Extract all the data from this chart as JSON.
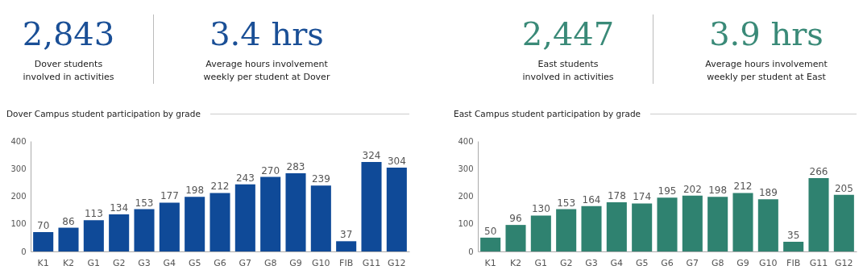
{
  "chart_data": [
    {
      "type": "other",
      "color": "#1a4f96",
      "annotations": [
        "2,843",
        "Dover students involved in activities",
        "3.4 hrs",
        "Average hours involvement weekly per student at Dover"
      ]
    },
    {
      "type": "other",
      "color": "#3a8a78",
      "annotations": [
        "2,447",
        "East students involved in activities",
        "3.9 hrs",
        "Average hours involvement weekly per student at East"
      ]
    },
    {
      "type": "bar",
      "title": "Dover Campus student participation by grade",
      "categories": [
        "K1",
        "K2",
        "G1",
        "G2",
        "G3",
        "G4",
        "G5",
        "G6",
        "G7",
        "G8",
        "G9",
        "G10",
        "FIB",
        "G11",
        "G12"
      ],
      "values": [
        70,
        86,
        113,
        134,
        153,
        177,
        198,
        212,
        243,
        270,
        283,
        239,
        37,
        324,
        304
      ],
      "color": "#0f4a98",
      "ylim": [
        0,
        400
      ],
      "yticks": [
        0,
        100,
        200,
        300,
        400
      ],
      "data_labels": true
    },
    {
      "type": "bar",
      "title": "East Campus student participation by grade",
      "categories": [
        "K1",
        "K2",
        "G1",
        "G2",
        "G3",
        "G4",
        "G5",
        "G6",
        "G7",
        "G8",
        "G9",
        "G10",
        "FIB",
        "G11",
        "G12"
      ],
      "values": [
        50,
        96,
        130,
        153,
        164,
        178,
        174,
        195,
        202,
        198,
        212,
        189,
        35,
        266,
        205
      ],
      "color": "#2f8270",
      "ylim": [
        0,
        400
      ],
      "yticks": [
        0,
        100,
        200,
        300,
        400
      ],
      "data_labels": true
    }
  ]
}
